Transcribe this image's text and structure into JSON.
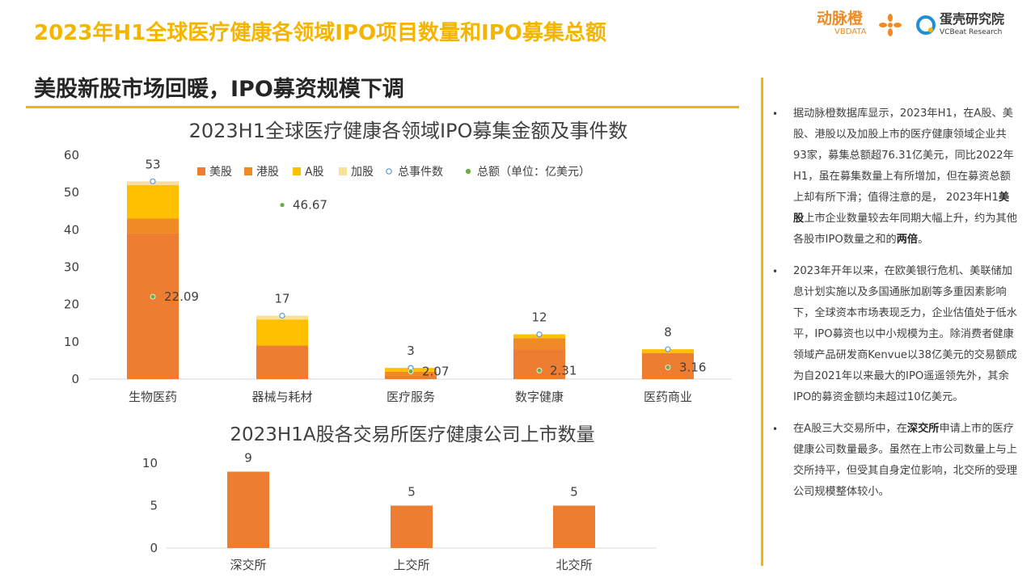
{
  "page_title": "2023年H1全球医疗健康各领域IPO项目数量和IPO募集总额",
  "subtitle": "美股新股市场回暖，IPO募资规模下调",
  "logos": {
    "vbdata_main": "动脉橙",
    "vbdata_sub": "VBDATA",
    "vcbeat_main": "蛋壳研究院",
    "vcbeat_sub": "VCBeat Research"
  },
  "colors": {
    "accent": "#F5B400",
    "us": "#ED7D31",
    "hk": "#F08A24",
    "a_share": "#FFC000",
    "sg": "#F7E199",
    "total_marker": "#5B9BD5",
    "amount_marker": "#70AD47"
  },
  "chart_data": [
    {
      "type": "bar",
      "stacked": true,
      "title": "2023H1全球医疗健康各领域IPO募集金额及事件数",
      "categories": [
        "生物医药",
        "器械与耗材",
        "医疗服务",
        "数字健康",
        "医药商业"
      ],
      "series": [
        {
          "name": "美股",
          "values": [
            39,
            9,
            1,
            8,
            7
          ]
        },
        {
          "name": "港股",
          "values": [
            4,
            0,
            1,
            3,
            0
          ]
        },
        {
          "name": "A股",
          "values": [
            9,
            7,
            1,
            1,
            1
          ]
        },
        {
          "name": "加股",
          "values": [
            1,
            1,
            0,
            0,
            0
          ]
        }
      ],
      "markers": [
        {
          "name": "总事件数",
          "values": [
            53,
            17,
            3,
            12,
            8
          ]
        },
        {
          "name": "总额（单位：亿美元）",
          "values": [
            22.09,
            46.67,
            2.07,
            2.31,
            3.16
          ]
        }
      ],
      "total_labels": [
        "53",
        "17",
        "3",
        "12",
        "8"
      ],
      "amount_labels": [
        "22.09",
        "46.67",
        "2.07",
        "2.31",
        "3.16"
      ],
      "ylim": [
        0,
        60
      ],
      "yticks": [
        "0",
        "10",
        "20",
        "30",
        "40",
        "50",
        "60"
      ],
      "legend": [
        "美股",
        "港股",
        "A股",
        "加股",
        "总事件数",
        "总额（单位：亿美元）"
      ],
      "legend_position": "top",
      "grid": false
    },
    {
      "type": "bar",
      "title": "2023H1A股各交易所医疗健康公司上市数量",
      "categories": [
        "深交所",
        "上交所",
        "北交所"
      ],
      "values": [
        9,
        5,
        5
      ],
      "value_labels": [
        "9",
        "5",
        "5"
      ],
      "ylim": [
        0,
        10
      ],
      "yticks": [
        "0",
        "5",
        "10"
      ],
      "grid": false
    }
  ],
  "notes": [
    {
      "pre": "据动脉橙数据库显示，2023年H1，在A股、美股、港股以及加股上市的医疗健康领域企业共93家，募集总额超76.31亿美元，同比2022年H1，虽在募集数量上有所增加，但在募资总额上却有所下滑；值得注意的是， 2023年H1",
      "bold1": "美股",
      "mid": "上市企业数量较去年同期大幅上升，约为其他各股市IPO数量之和的",
      "bold2": "两倍",
      "post": "。"
    },
    {
      "pre": "2023年开年以来，在欧美银行危机、美联储加息计划实施以及多国通胀加剧等多重因素影响下，全球资本市场表现乏力，企业估值处于低水平，IPO募资也以中小规模为主。除消费者健康领域产品研发商Kenvue以38亿美元的交易额成为自2021年以来最大的IPO遥遥领先外，其余IPO的募资金额均未超过10亿美元。",
      "bold1": "",
      "mid": "",
      "bold2": "",
      "post": ""
    },
    {
      "pre": "在A股三大交易所中，在",
      "bold1": "深交所",
      "mid": "申请上市的医疗健康公司数量最多。虽然在上市公司数量上与上交所持平，但受其自身定位影响，北交所的受理公司规模整体较小。",
      "bold2": "",
      "post": ""
    }
  ]
}
